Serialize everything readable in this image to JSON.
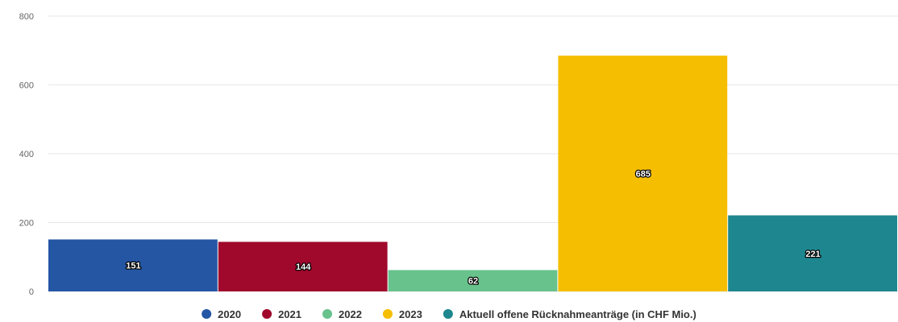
{
  "chart_data": {
    "type": "bar",
    "title": "",
    "xlabel": "",
    "ylabel": "",
    "ylim": [
      0,
      800
    ],
    "yticks": [
      0,
      200,
      400,
      600,
      800
    ],
    "grid": true,
    "legend_position": "bottom-center",
    "series": [
      {
        "name": "2020",
        "value": 151,
        "color": "#2456a4"
      },
      {
        "name": "2021",
        "value": 144,
        "color": "#a0082c"
      },
      {
        "name": "2022",
        "value": 62,
        "color": "#68c28c"
      },
      {
        "name": "2023",
        "value": 685,
        "color": "#f6be00"
      },
      {
        "name": "Aktuell offene Rücknahmeanträge (in CHF Mio.)",
        "value": 221,
        "color": "#1d868e"
      }
    ]
  }
}
